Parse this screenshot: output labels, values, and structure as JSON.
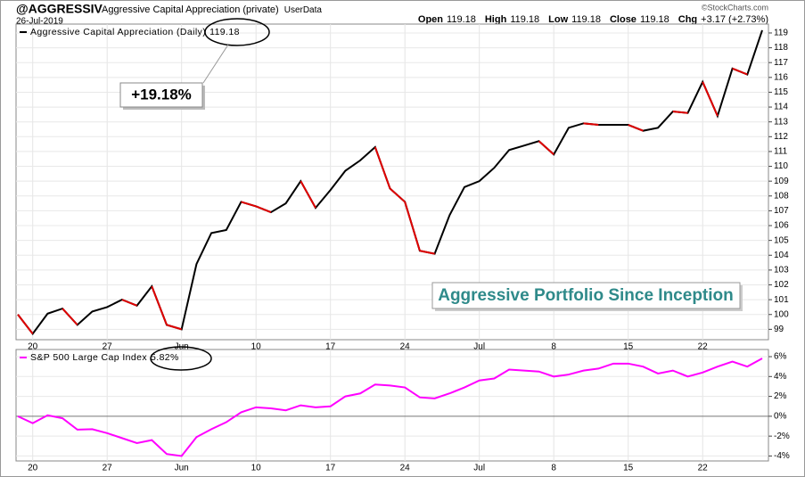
{
  "header": {
    "symbol": "@AGGRESSIV",
    "name": "Aggressive Capital Appreciation (private)",
    "source": "UserData",
    "date": "26-Jul-2019",
    "credit": "©StockCharts.com",
    "quote": [
      {
        "label": "Open",
        "value": "119.18"
      },
      {
        "label": "High",
        "value": "119.18"
      },
      {
        "label": "Low",
        "value": "119.18"
      },
      {
        "label": "Close",
        "value": "119.18"
      },
      {
        "label": "Chg",
        "value": "+3.17 (+2.73%)"
      }
    ]
  },
  "chart_data": [
    {
      "type": "line",
      "categories": [
        null,
        "20",
        null,
        null,
        null,
        null,
        "27",
        null,
        null,
        null,
        null,
        "Jun",
        null,
        null,
        null,
        null,
        "10",
        null,
        null,
        null,
        null,
        "17",
        null,
        null,
        null,
        null,
        "24",
        null,
        null,
        null,
        null,
        "Jul",
        null,
        null,
        null,
        null,
        "8",
        null,
        null,
        null,
        null,
        "15",
        null,
        null,
        null,
        null,
        "22",
        null,
        null,
        null,
        null
      ],
      "series": [
        {
          "name": "Aggressive Capital Appreciation (Daily)",
          "color": "#000000",
          "down_color": "#e00000",
          "values": [
            100.0,
            98.7,
            100.06,
            100.4,
            99.3,
            100.2,
            100.5,
            101.0,
            100.6,
            101.9,
            99.3,
            99.0,
            103.4,
            105.5,
            105.7,
            107.6,
            107.3,
            106.9,
            107.5,
            109.0,
            107.2,
            108.4,
            109.7,
            110.4,
            111.3,
            108.5,
            107.6,
            104.3,
            104.1,
            106.7,
            108.6,
            109.0,
            109.9,
            111.1,
            111.4,
            111.7,
            110.8,
            112.6,
            112.9,
            112.8,
            112.8,
            112.8,
            112.4,
            112.6,
            113.7,
            113.6,
            115.7,
            113.4,
            116.6,
            116.2,
            119.18
          ]
        }
      ],
      "ylim": [
        98.3,
        119.6
      ],
      "yticks": [
        99,
        100,
        101,
        102,
        103,
        104,
        105,
        106,
        107,
        108,
        109,
        110,
        111,
        112,
        113,
        114,
        115,
        116,
        117,
        118,
        119
      ],
      "grid": true,
      "annotations": [
        "+19.18%",
        "Aggressive Portfolio Since Inception"
      ]
    },
    {
      "type": "line",
      "categories": [
        null,
        "20",
        null,
        null,
        null,
        null,
        "27",
        null,
        null,
        null,
        null,
        "Jun",
        null,
        null,
        null,
        null,
        "10",
        null,
        null,
        null,
        null,
        "17",
        null,
        null,
        null,
        null,
        "24",
        null,
        null,
        null,
        null,
        "Jul",
        null,
        null,
        null,
        null,
        "8",
        null,
        null,
        null,
        null,
        "15",
        null,
        null,
        null,
        null,
        "22",
        null,
        null,
        null,
        null
      ],
      "series": [
        {
          "name": "S&P 500 Large Cap Index",
          "color": "#ff00ff",
          "legend_value_label": "5.82%",
          "values": [
            0,
            -0.7,
            0.1,
            -0.2,
            -1.35,
            -1.3,
            -1.7,
            -2.2,
            -2.7,
            -2.4,
            -3.8,
            -4.0,
            -2.1,
            -1.3,
            -0.6,
            0.4,
            0.9,
            0.8,
            0.6,
            1.1,
            0.9,
            1.0,
            2.0,
            2.3,
            3.2,
            3.1,
            2.9,
            1.9,
            1.8,
            2.3,
            2.9,
            3.6,
            3.8,
            4.7,
            4.6,
            4.5,
            4.0,
            4.2,
            4.6,
            4.8,
            5.3,
            5.3,
            5.0,
            4.3,
            4.6,
            4.0,
            4.4,
            5.0,
            5.5,
            5.0,
            5.82
          ]
        }
      ],
      "ylim": [
        -4.5,
        6.72
      ],
      "yticks": [
        {
          "value": -4,
          "label": "-4%"
        },
        {
          "value": -2,
          "label": "-2%"
        },
        {
          "value": 0,
          "label": "0%"
        },
        {
          "value": 2,
          "label": "2%"
        },
        {
          "value": 4,
          "label": "4%"
        },
        {
          "value": 6,
          "label": "6%"
        }
      ],
      "grid": true
    }
  ]
}
